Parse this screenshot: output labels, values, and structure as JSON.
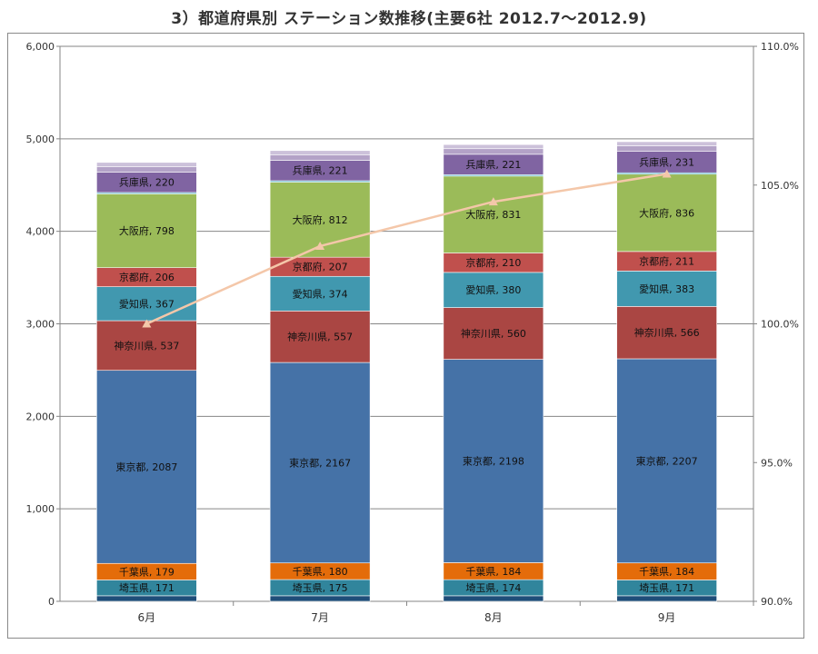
{
  "chart_data": {
    "type": "bar",
    "stacked": true,
    "title": "3）都道府県別 ステーション数推移(主要6社 2012.7〜2012.9)",
    "categories": [
      "6月",
      "7月",
      "8月",
      "9月"
    ],
    "ylim": [
      0,
      6000
    ],
    "yticks": [
      "0",
      "1,000",
      "2,000",
      "3,000",
      "4,000",
      "5,000",
      "6,000"
    ],
    "y2lim": [
      90,
      110
    ],
    "y2ticks": [
      "90.0%",
      "95.0%",
      "100.0%",
      "105.0%",
      "110.0%"
    ],
    "grid": true,
    "series": [
      {
        "name": "",
        "label": "",
        "color": "#1f4e79",
        "values": [
          60,
          60,
          60,
          60
        ]
      },
      {
        "name": "埼玉県",
        "label": "埼玉県",
        "color": "#31859c",
        "values": [
          171,
          175,
          174,
          171
        ]
      },
      {
        "name": "千葉県",
        "label": "千葉県",
        "color": "#e46c0a",
        "values": [
          179,
          180,
          184,
          184
        ]
      },
      {
        "name": "東京都",
        "label": "東京都",
        "color": "#4572a7",
        "values": [
          2087,
          2167,
          2198,
          2207
        ]
      },
      {
        "name": "神奈川県",
        "label": "神奈川県",
        "color": "#aa4643",
        "values": [
          537,
          557,
          560,
          566
        ]
      },
      {
        "name": "愛知県",
        "label": "愛知県",
        "color": "#4198af",
        "values": [
          367,
          374,
          380,
          383
        ]
      },
      {
        "name": "京都府",
        "label": "京都府",
        "color": "#c0504d",
        "values": [
          206,
          207,
          210,
          211
        ]
      },
      {
        "name": "大阪府",
        "label": "大阪府",
        "color": "#9bbb59",
        "values": [
          798,
          812,
          831,
          836
        ]
      },
      {
        "name": "",
        "label": "",
        "color": "#4bacc6",
        "values": [
          15,
          15,
          15,
          15
        ]
      },
      {
        "name": "兵庫県",
        "label": "兵庫県",
        "color": "#8064a2",
        "values": [
          220,
          221,
          221,
          231
        ]
      },
      {
        "name": "",
        "label": "",
        "color": "#b3a2c7",
        "values": [
          60,
          60,
          60,
          60
        ]
      },
      {
        "name": "",
        "label": "",
        "color": "#ccc1da",
        "values": [
          45,
          45,
          45,
          45
        ]
      }
    ],
    "line": {
      "name": "",
      "color": "#f4c7a9",
      "axis": "secondary",
      "values": [
        100.0,
        102.8,
        104.4,
        105.4
      ]
    }
  }
}
